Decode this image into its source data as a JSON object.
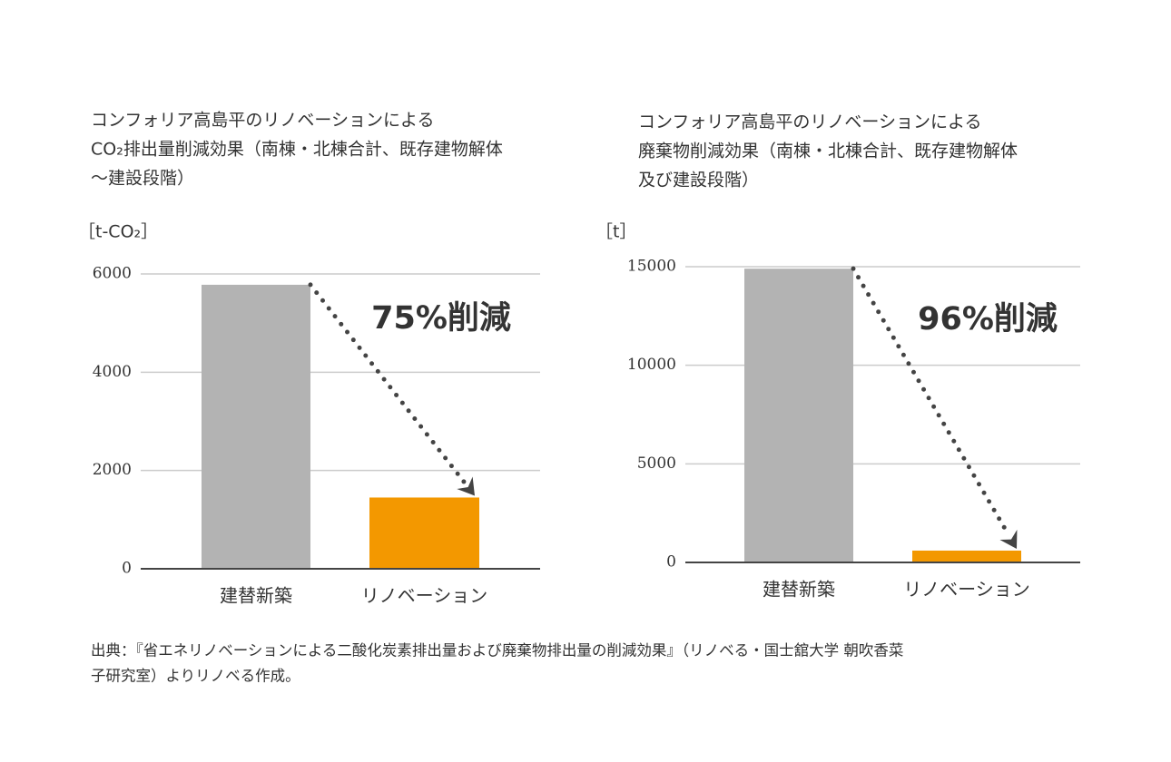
{
  "chart_data": [
    {
      "type": "bar",
      "title": [
        "コンフォリア高島平のリノベーションによる",
        "CO₂排出量削減効果（南棟・北棟合計、既存建物解体",
        "〜建設段階）"
      ],
      "y_label": "［t-CO₂］",
      "categories": [
        "建替新築",
        "リノベーション"
      ],
      "values": [
        5780,
        1450
      ],
      "colors": [
        "#b3b3b3",
        "#f39800"
      ],
      "ylim": [
        0,
        6000
      ],
      "yticks": [
        0,
        2000,
        4000,
        6000
      ],
      "grid": true,
      "annotation": "75%削減"
    },
    {
      "type": "bar",
      "title": [
        "コンフォリア高島平のリノベーションによる",
        "廃棄物削減効果（南棟・北棟合計、既存建物解体",
        "及び建設段階）"
      ],
      "y_label": "［t］",
      "categories": [
        "建替新築",
        "リノベーション"
      ],
      "values": [
        14900,
        600
      ],
      "colors": [
        "#b3b3b3",
        "#f39800"
      ],
      "ylim": [
        0,
        15000
      ],
      "yticks": [
        0,
        5000,
        10000,
        15000
      ],
      "grid": true,
      "annotation": "96%削減"
    }
  ],
  "source": [
    "出典：『省エネリノベーションによる二酸化炭素排出量および廃棄物排出量の削減効果』（リノベる・国士舘大学 朝吹香菜",
    "子研究室）よりリノベる作成。"
  ]
}
